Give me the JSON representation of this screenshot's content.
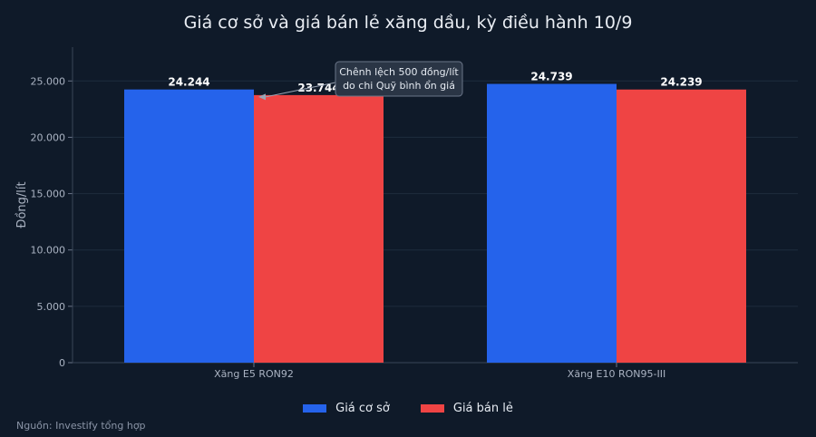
{
  "chart_data": {
    "type": "bar",
    "title": "Giá cơ sở và giá bán lẻ xăng dầu, kỳ điều hành 10/9",
    "xlabel": "",
    "ylabel": "Đồng/lít",
    "ylim": [
      0,
      28000
    ],
    "yticks": [
      0,
      5000,
      10000,
      15000,
      20000,
      25000
    ],
    "ytick_labels": [
      "0",
      "5.000",
      "10.000",
      "15.000",
      "20.000",
      "25.000"
    ],
    "categories": [
      "Xăng E5 RON92",
      "Xăng E10 RON95-III"
    ],
    "series": [
      {
        "name": "Giá cơ sở",
        "color": "#2563eb",
        "values": [
          24244,
          24739
        ],
        "labels": [
          "24.244",
          "24.739"
        ]
      },
      {
        "name": "Giá bán lẻ",
        "color": "#ef4444",
        "values": [
          23744,
          24239
        ],
        "labels": [
          "23.744",
          "24.239"
        ]
      }
    ],
    "annotation": {
      "lines": [
        "Chênh lệch 500 đồng/lít",
        "do chi Quỹ bình ổn giá"
      ],
      "category_index": 0
    },
    "grid": true,
    "legend_position": "bottom-center"
  },
  "source": "Nguồn: Investify tổng hợp"
}
